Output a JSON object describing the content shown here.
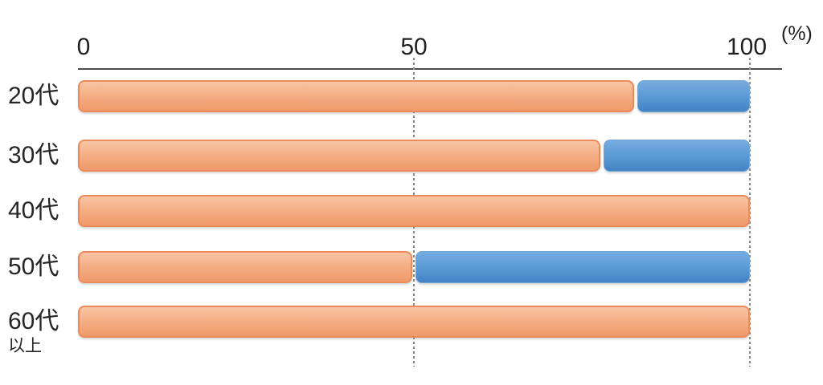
{
  "chart_data": {
    "type": "bar",
    "orientation": "horizontal",
    "stacked": true,
    "title": "",
    "unit_label": "(%)",
    "xlim": [
      0,
      100
    ],
    "tick_values": [
      0,
      50,
      100
    ],
    "tick_labels": [
      "0",
      "50",
      "100"
    ],
    "gridline_values": [
      50,
      100
    ],
    "gridline_style": "dotted",
    "legend_position": "none",
    "categories": [
      "20代",
      "30代",
      "40代",
      "50代",
      "60代以上"
    ],
    "category_display": [
      {
        "main": "20代",
        "sub": ""
      },
      {
        "main": "30代",
        "sub": ""
      },
      {
        "main": "40代",
        "sub": ""
      },
      {
        "main": "50代",
        "sub": ""
      },
      {
        "main": "60代",
        "sub": "以上"
      }
    ],
    "series": [
      {
        "name": "orange-segment",
        "color": "#F2A175",
        "border_color": "#EC8A59",
        "values": [
          83,
          78,
          100,
          50,
          100
        ]
      },
      {
        "name": "blue-segment",
        "color": "#5B9BD5",
        "border_color": "#6FA5D8",
        "values": [
          17,
          22,
          0,
          50,
          0
        ]
      }
    ]
  },
  "colors": {
    "axis_line": "#4D4D4D",
    "grid_line": "#8A8A8A",
    "text": "#262626",
    "background": "#FFFFFF"
  }
}
